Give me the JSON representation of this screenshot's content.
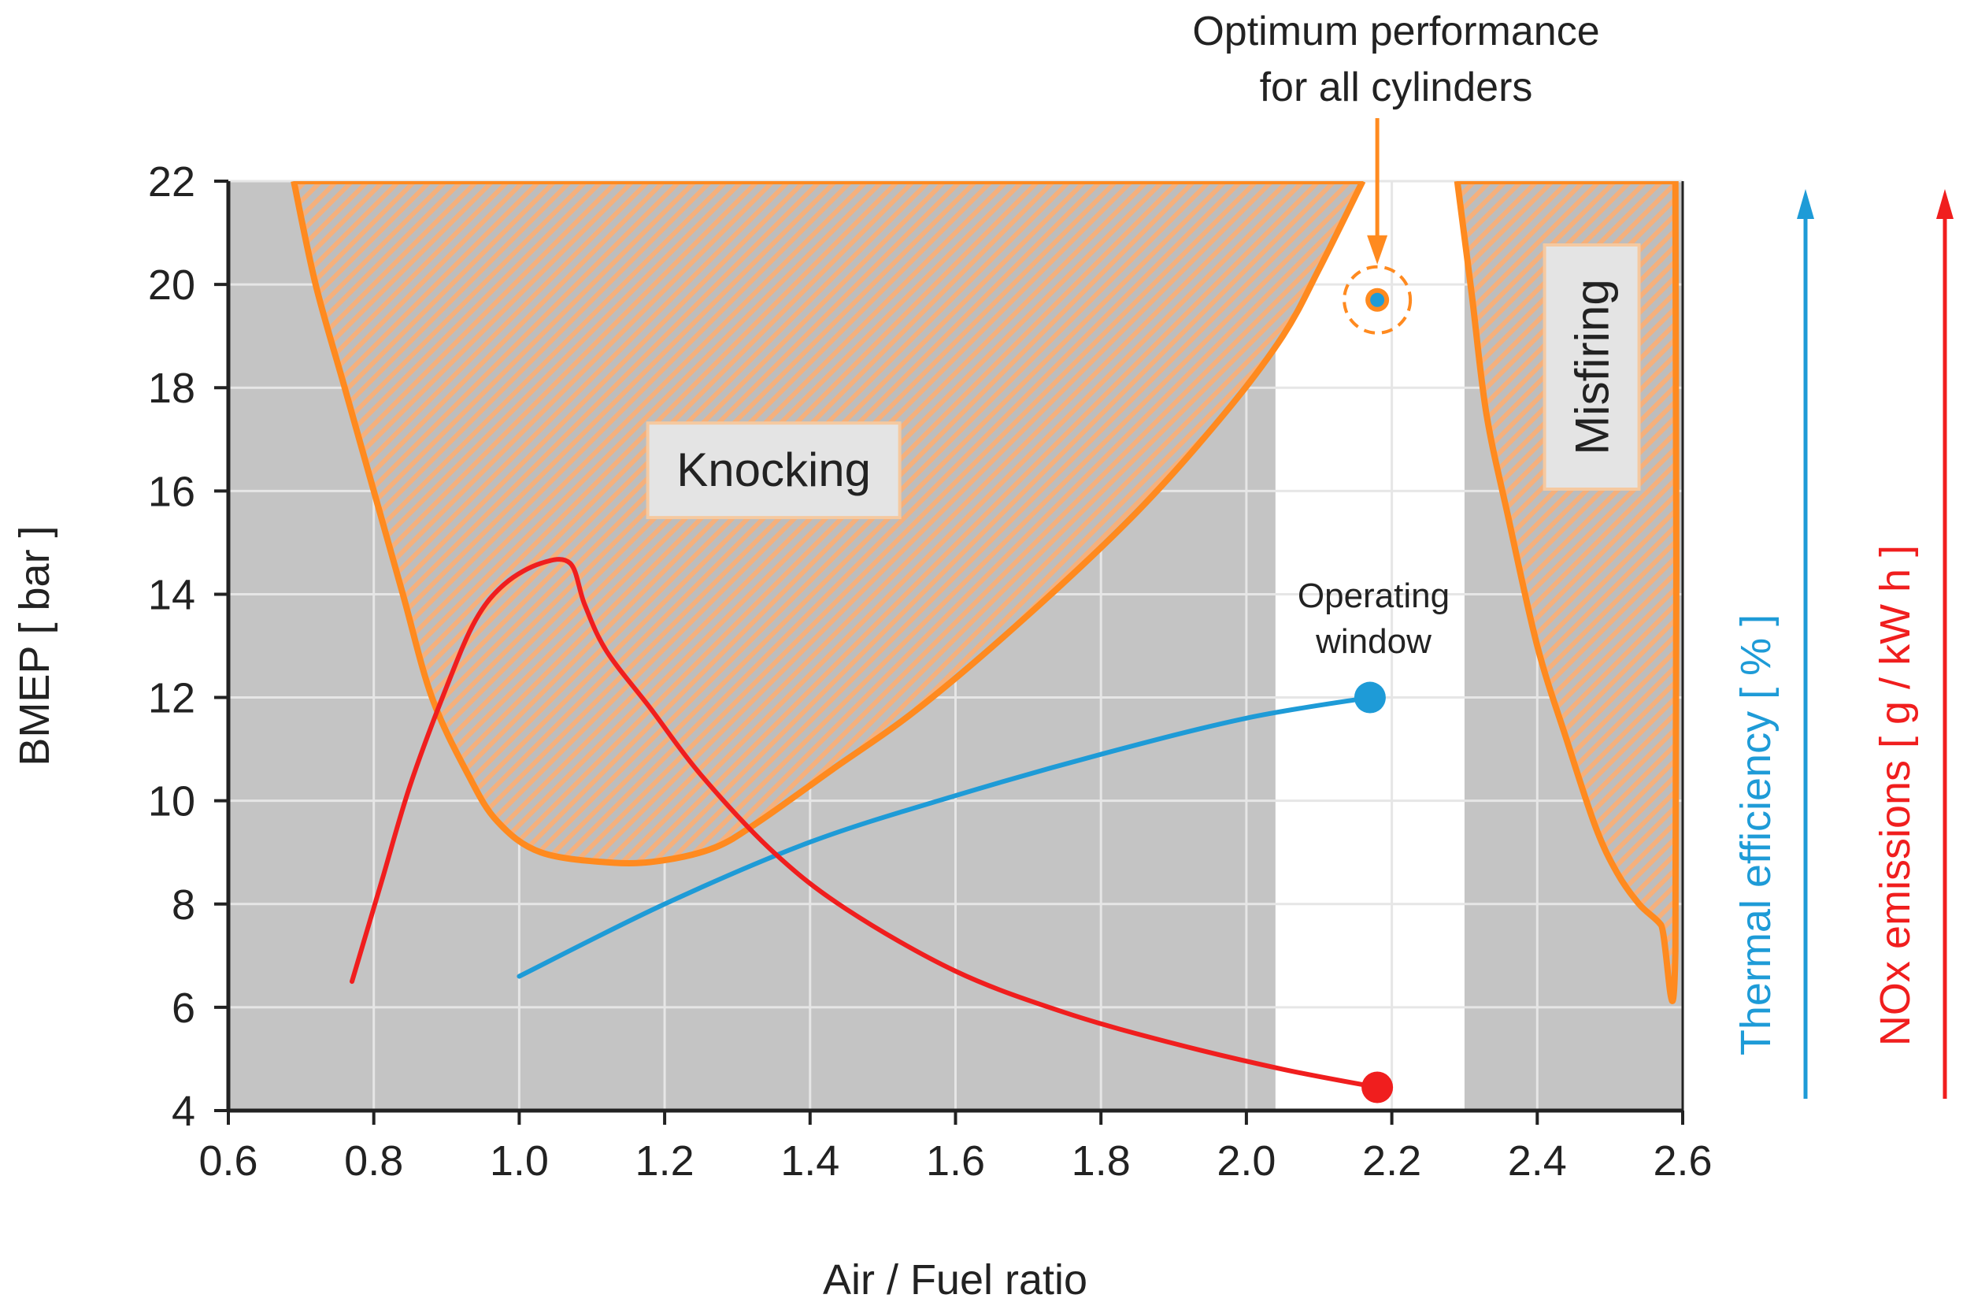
{
  "chart_data": {
    "type": "line",
    "xlabel": "Air / Fuel ratio",
    "ylabel": "BMEP [ bar ]",
    "xlim": [
      0.6,
      2.6
    ],
    "ylim": [
      4,
      22
    ],
    "x_ticks": [
      "0.6",
      "0.8",
      "1.0",
      "1.2",
      "1.4",
      "1.6",
      "1.8",
      "2.0",
      "2.2",
      "2.4",
      "2.6"
    ],
    "y_ticks": [
      "4",
      "6",
      "8",
      "10",
      "12",
      "14",
      "16",
      "18",
      "20",
      "22"
    ],
    "grid": true,
    "operating_window": {
      "x_range": [
        2.04,
        2.3
      ],
      "label": "Operating window"
    },
    "regions": [
      {
        "name": "Knocking",
        "points": [
          [
            0.69,
            22
          ],
          [
            0.72,
            20
          ],
          [
            0.76,
            18
          ],
          [
            0.8,
            16
          ],
          [
            0.84,
            14
          ],
          [
            0.88,
            12
          ],
          [
            0.93,
            10.5
          ],
          [
            0.97,
            9.6
          ],
          [
            1.03,
            9.0
          ],
          [
            1.13,
            8.8
          ],
          [
            1.2,
            8.85
          ],
          [
            1.27,
            9.1
          ],
          [
            1.33,
            9.6
          ],
          [
            1.43,
            10.6
          ],
          [
            1.55,
            11.8
          ],
          [
            1.7,
            13.6
          ],
          [
            1.85,
            15.6
          ],
          [
            1.97,
            17.5
          ],
          [
            2.05,
            19.0
          ],
          [
            2.1,
            20.3
          ],
          [
            2.16,
            22
          ]
        ],
        "label_at": [
          1.35,
          16.4
        ]
      },
      {
        "name": "Misfiring",
        "points": [
          [
            2.29,
            22
          ],
          [
            2.31,
            19.8
          ],
          [
            2.33,
            17.5
          ],
          [
            2.36,
            15.5
          ],
          [
            2.4,
            13.0
          ],
          [
            2.44,
            11.2
          ],
          [
            2.48,
            9.5
          ],
          [
            2.51,
            8.6
          ],
          [
            2.54,
            8.0
          ],
          [
            2.57,
            7.6
          ],
          [
            2.59,
            7.1
          ],
          [
            2.59,
            22
          ]
        ],
        "label_at": [
          2.475,
          18.4
        ]
      }
    ],
    "series": [
      {
        "name": "Thermal efficiency [ % ]",
        "color": "#1e9bd7",
        "points": [
          [
            1.0,
            6.6
          ],
          [
            1.2,
            8.0
          ],
          [
            1.4,
            9.2
          ],
          [
            1.6,
            10.1
          ],
          [
            1.8,
            10.9
          ],
          [
            2.0,
            11.6
          ],
          [
            2.17,
            12.0
          ]
        ],
        "end_marker": [
          2.17,
          12.0
        ]
      },
      {
        "name": "NOx emissions [ g / kW h ]",
        "color": "#f01e1e",
        "points": [
          [
            0.77,
            6.5
          ],
          [
            0.81,
            8.4
          ],
          [
            0.85,
            10.3
          ],
          [
            0.9,
            12.2
          ],
          [
            0.94,
            13.5
          ],
          [
            0.98,
            14.2
          ],
          [
            1.03,
            14.6
          ],
          [
            1.07,
            14.6
          ],
          [
            1.09,
            13.8
          ],
          [
            1.12,
            12.9
          ],
          [
            1.18,
            11.8
          ],
          [
            1.25,
            10.5
          ],
          [
            1.35,
            9.0
          ],
          [
            1.45,
            7.9
          ],
          [
            1.6,
            6.7
          ],
          [
            1.75,
            5.9
          ],
          [
            1.9,
            5.3
          ],
          [
            2.05,
            4.8
          ],
          [
            2.18,
            4.45
          ]
        ],
        "end_marker": [
          2.18,
          4.45
        ]
      }
    ],
    "optimum_point": {
      "x": 2.18,
      "y": 19.7
    },
    "annotations": [
      {
        "text": "Optimum performance for all cylinders",
        "lines": [
          "Optimum performance",
          "for all cylinders"
        ],
        "at": [
          2.18,
          19.7
        ]
      },
      {
        "text": "Operating window",
        "lines": [
          "Operating",
          "window"
        ],
        "at": [
          2.175,
          13.9
        ]
      }
    ],
    "right_axes": [
      {
        "label": "Thermal efficiency [ % ]",
        "color": "#1e9bd7",
        "direction": "up"
      },
      {
        "label": "NOx emissions [ g / kW h ]",
        "color": "#f01e1e",
        "direction": "up"
      }
    ]
  },
  "colors": {
    "background_region": "#c4c4c4",
    "hatch_orange": "#f5b07c",
    "outline_orange": "#ff8a1f",
    "label_box_fill": "#e4e4e4",
    "label_box_stroke": "#f5c9a0",
    "grid": "#e6e6e6"
  }
}
